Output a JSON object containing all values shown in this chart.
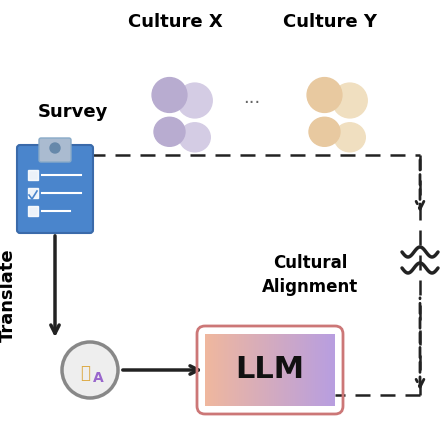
{
  "bg_color": "#ffffff",
  "culture_x_label": "Culture X",
  "culture_y_label": "Culture Y",
  "survey_label": "Survey",
  "translate_label": "Translate",
  "llm_label": "LLM",
  "cultural_alignment_label": "Cultural\nAlignment",
  "culture_x_color_dark": "#b8acd0",
  "culture_x_color_light": "#d4cce4",
  "culture_y_color_dark": "#e8c9a0",
  "culture_y_color_light": "#f0dfc0",
  "clipboard_color": "#4a85cc",
  "clipboard_clip_color": "#7aA0c8",
  "arrow_color": "#222222",
  "dashed_color": "#222222",
  "label_fontsize": 13,
  "llm_fontsize": 22,
  "alignment_fontsize": 12
}
